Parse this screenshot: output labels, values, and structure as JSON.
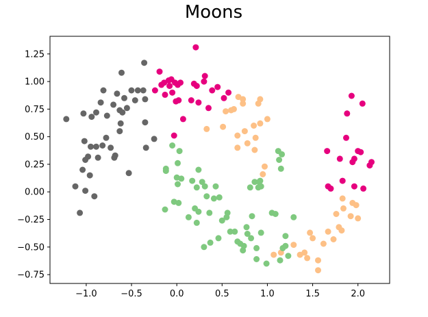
{
  "chart_data": {
    "type": "scatter",
    "title": "Moons",
    "xlabel": "",
    "ylabel": "",
    "xlim": [
      -1.4,
      2.35
    ],
    "ylim": [
      -0.83,
      1.41
    ],
    "xticks": [
      -1.0,
      -0.5,
      0.0,
      0.5,
      1.0,
      1.5,
      2.0
    ],
    "xtick_labels": [
      "−1.0",
      "−0.5",
      "0.0",
      "0.5",
      "1.0",
      "1.5",
      "2.0"
    ],
    "yticks": [
      -0.75,
      -0.5,
      -0.25,
      0.0,
      0.25,
      0.5,
      0.75,
      1.0,
      1.25
    ],
    "ytick_labels": [
      "−0.75",
      "−0.50",
      "−0.25",
      "0.00",
      "0.25",
      "0.50",
      "0.75",
      "1.00",
      "1.25"
    ],
    "grid": false,
    "series": [
      {
        "color": "#666666",
        "points": [
          [
            -1.22,
            0.66
          ],
          [
            -1.12,
            0.05
          ],
          [
            -1.07,
            -0.19
          ],
          [
            -1.04,
            0.2
          ],
          [
            -1.03,
            0.71
          ],
          [
            -1.02,
            0.46
          ],
          [
            -1.01,
            0.29
          ],
          [
            -1.01,
            0.01
          ],
          [
            -0.98,
            0.32
          ],
          [
            -0.96,
            0.15
          ],
          [
            -0.95,
            0.41
          ],
          [
            -0.94,
            0.68
          ],
          [
            -0.91,
            -0.04
          ],
          [
            -0.89,
            0.72
          ],
          [
            -0.89,
            0.41
          ],
          [
            -0.87,
            0.31
          ],
          [
            -0.84,
            0.81
          ],
          [
            -0.82,
            0.42
          ],
          [
            -0.81,
            0.92
          ],
          [
            -0.78,
            0.49
          ],
          [
            -0.77,
            0.69
          ],
          [
            -0.73,
            0.4
          ],
          [
            -0.7,
            0.79
          ],
          [
            -0.69,
            0.31
          ],
          [
            -0.68,
            0.33
          ],
          [
            -0.66,
            0.89
          ],
          [
            -0.63,
            0.74
          ],
          [
            -0.63,
            0.55
          ],
          [
            -0.62,
            0.62
          ],
          [
            -0.61,
            1.08
          ],
          [
            -0.6,
            0.72
          ],
          [
            -0.58,
            0.85
          ],
          [
            -0.55,
            0.76
          ],
          [
            -0.53,
            0.17
          ],
          [
            -0.5,
            0.92
          ],
          [
            -0.46,
            0.83
          ],
          [
            -0.43,
            0.92
          ],
          [
            -0.36,
            1.17
          ],
          [
            -0.35,
            0.63
          ],
          [
            -0.34,
            0.4
          ],
          [
            -0.25,
            0.48
          ],
          [
            -0.37,
            0.92
          ],
          [
            -0.35,
            0.84
          ]
        ]
      },
      {
        "color": "#e6007e",
        "points": [
          [
            -0.24,
            0.92
          ],
          [
            -0.19,
            1.09
          ],
          [
            -0.17,
            0.97
          ],
          [
            -0.14,
            0.99
          ],
          [
            -0.13,
            0.88
          ],
          [
            -0.09,
            1.01
          ],
          [
            -0.08,
            0.96
          ],
          [
            -0.06,
            1.02
          ],
          [
            -0.05,
            0.9
          ],
          [
            -0.03,
            0.51
          ],
          [
            -0.02,
            0.99
          ],
          [
            -0.01,
            0.82
          ],
          [
            0.01,
            0.97
          ],
          [
            0.02,
            0.83
          ],
          [
            0.04,
            0.99
          ],
          [
            0.07,
            0.66
          ],
          [
            0.16,
            0.83
          ],
          [
            0.19,
            0.98
          ],
          [
            0.21,
            1.31
          ],
          [
            0.22,
            0.96
          ],
          [
            0.24,
            0.81
          ],
          [
            0.3,
            1.0
          ],
          [
            0.31,
            1.05
          ],
          [
            0.35,
            0.76
          ],
          [
            0.39,
            0.92
          ],
          [
            0.45,
            0.95
          ],
          [
            0.52,
            0.85
          ],
          [
            0.57,
            0.9
          ],
          [
            1.66,
            0.37
          ],
          [
            1.67,
            0.05
          ],
          [
            1.7,
            0.03
          ],
          [
            1.8,
            0.3
          ],
          [
            1.83,
            0.1
          ],
          [
            1.88,
            0.71
          ],
          [
            1.93,
            0.87
          ],
          [
            1.94,
            0.27
          ],
          [
            1.96,
            0.3
          ],
          [
            1.96,
            0.05
          ],
          [
            2.0,
            0.37
          ],
          [
            2.03,
            0.36
          ],
          [
            2.05,
            0.8
          ],
          [
            2.06,
            0.03
          ],
          [
            2.13,
            0.24
          ],
          [
            2.15,
            0.27
          ],
          [
            1.87,
            0.49
          ]
        ]
      },
      {
        "color": "#fdc086",
        "points": [
          [
            0.33,
            0.57
          ],
          [
            0.51,
            0.59
          ],
          [
            0.54,
            0.73
          ],
          [
            0.6,
            0.74
          ],
          [
            0.63,
            0.75
          ],
          [
            0.67,
            0.51
          ],
          [
            0.68,
            0.86
          ],
          [
            0.73,
            0.8
          ],
          [
            0.73,
            0.84
          ],
          [
            0.75,
            0.55
          ],
          [
            0.78,
            0.44
          ],
          [
            0.85,
            0.6
          ],
          [
            0.86,
            0.38
          ],
          [
            0.87,
            0.49
          ],
          [
            0.9,
            0.8
          ],
          [
            0.92,
            0.84
          ],
          [
            0.95,
            0.16
          ],
          [
            0.97,
            0.23
          ],
          [
            1.0,
            0.66
          ],
          [
            1.07,
            -0.57
          ],
          [
            1.15,
            -0.55
          ],
          [
            1.29,
            -0.48
          ],
          [
            1.36,
            -0.57
          ],
          [
            1.41,
            -0.55
          ],
          [
            1.44,
            -0.6
          ],
          [
            1.47,
            -0.37
          ],
          [
            1.5,
            -0.42
          ],
          [
            1.56,
            -0.62
          ],
          [
            1.56,
            -0.71
          ],
          [
            1.62,
            -0.47
          ],
          [
            1.67,
            -0.36
          ],
          [
            1.73,
            -0.43
          ],
          [
            1.76,
            -0.2
          ],
          [
            1.79,
            -0.32
          ],
          [
            1.82,
            -0.35
          ],
          [
            1.83,
            -0.06
          ],
          [
            1.84,
            -0.15
          ],
          [
            1.92,
            -0.22
          ],
          [
            1.94,
            -0.1
          ],
          [
            1.98,
            -0.12
          ],
          [
            2.0,
            -0.24
          ],
          [
            0.92,
            0.62
          ],
          [
            0.67,
            0.4
          ]
        ]
      },
      {
        "color": "#7fc97f",
        "points": [
          [
            -0.13,
            -0.16
          ],
          [
            -0.12,
            0.21
          ],
          [
            -0.12,
            0.19
          ],
          [
            -0.05,
            0.42
          ],
          [
            -0.03,
            -0.09
          ],
          [
            0.0,
            0.13
          ],
          [
            0.01,
            0.26
          ],
          [
            0.01,
            0.07
          ],
          [
            0.02,
            -0.1
          ],
          [
            0.03,
            0.37
          ],
          [
            0.05,
            0.12
          ],
          [
            0.13,
            -0.23
          ],
          [
            0.17,
            0.1
          ],
          [
            0.2,
            -0.15
          ],
          [
            0.22,
            -0.28
          ],
          [
            0.22,
            0.04
          ],
          [
            0.24,
            -0.18
          ],
          [
            0.24,
            0.2
          ],
          [
            0.28,
            0.09
          ],
          [
            0.3,
            -0.5
          ],
          [
            0.31,
            0.05
          ],
          [
            0.33,
            -0.04
          ],
          [
            0.36,
            -0.19
          ],
          [
            0.37,
            -0.46
          ],
          [
            0.41,
            -0.06
          ],
          [
            0.43,
            0.05
          ],
          [
            0.46,
            -0.42
          ],
          [
            0.47,
            -0.05
          ],
          [
            0.5,
            -0.26
          ],
          [
            0.55,
            -0.23
          ],
          [
            0.56,
            -0.19
          ],
          [
            0.59,
            -0.36
          ],
          [
            0.64,
            -0.36
          ],
          [
            0.67,
            -0.45
          ],
          [
            0.7,
            -0.47
          ],
          [
            0.73,
            -0.53
          ],
          [
            0.74,
            -0.49
          ],
          [
            0.77,
            -0.32
          ],
          [
            0.78,
            -0.38
          ],
          [
            0.81,
            0.04
          ],
          [
            0.82,
            -0.42
          ],
          [
            0.83,
            -0.22
          ],
          [
            0.86,
            0.09
          ],
          [
            0.88,
            -0.61
          ],
          [
            0.88,
            -0.51
          ],
          [
            0.9,
            0.04
          ],
          [
            0.91,
            0.09
          ],
          [
            0.92,
            0.1
          ],
          [
            0.93,
            -0.37
          ],
          [
            0.93,
            0.05
          ],
          [
            0.99,
            -0.65
          ],
          [
            1.05,
            -0.19
          ],
          [
            1.09,
            -0.2
          ],
          [
            1.12,
            0.37
          ],
          [
            1.13,
            0.29
          ],
          [
            1.14,
            -0.62
          ],
          [
            1.15,
            0.21
          ],
          [
            1.16,
            0.34
          ],
          [
            1.17,
            -0.51
          ],
          [
            1.2,
            -0.4
          ],
          [
            1.2,
            -0.49
          ],
          [
            1.29,
            -0.23
          ],
          [
            1.23,
            -0.58
          ]
        ]
      }
    ]
  }
}
